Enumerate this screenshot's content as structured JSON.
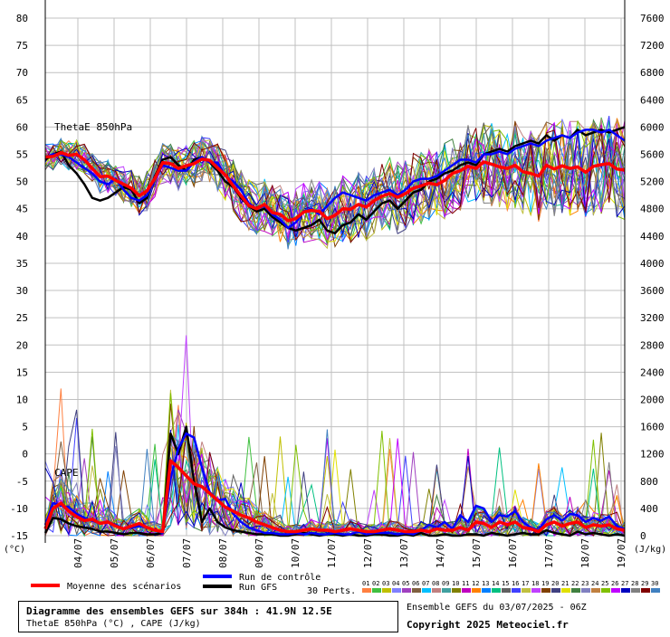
{
  "chart_data": {
    "type": "line",
    "left_axis": {
      "unit": "(°C)",
      "ticks": [
        80,
        75,
        70,
        65,
        60,
        55,
        50,
        45,
        40,
        35,
        30,
        25,
        20,
        15,
        10,
        5,
        0,
        -5,
        -10,
        -15
      ],
      "range": [
        -15,
        80
      ]
    },
    "right_axis": {
      "unit": "(J/kg)",
      "ticks": [
        7600,
        7200,
        6800,
        6400,
        6000,
        5600,
        5200,
        4800,
        4400,
        4000,
        3600,
        3200,
        2800,
        2400,
        2000,
        1600,
        1200,
        800,
        400,
        0
      ],
      "range": [
        0,
        7600
      ]
    },
    "x_ticks": [
      "04/07",
      "05/07",
      "06/07",
      "07/07",
      "08/07",
      "09/07",
      "10/07",
      "11/07",
      "12/07",
      "13/07",
      "14/07",
      "15/07",
      "16/07",
      "17/07",
      "18/07",
      "19/07"
    ],
    "panels": [
      {
        "label": "ThetaE 850hPa",
        "axis": "left"
      },
      {
        "label": "CAPE",
        "axis": "right"
      }
    ],
    "thetae_mean": [
      54.5,
      54.6,
      55.3,
      54.8,
      55.0,
      54.0,
      52.4,
      50.9,
      51.0,
      50.2,
      49.5,
      48.8,
      47.4,
      48.3,
      50.6,
      53.5,
      53.3,
      52.4,
      52.9,
      53.3,
      54.1,
      53.9,
      52.5,
      51.2,
      49.2,
      47.4,
      45.6,
      45.0,
      45.8,
      44.3,
      44.0,
      42.8,
      43.2,
      44.4,
      44.7,
      44.5,
      43.2,
      43.8,
      45.0,
      44.9,
      45.8,
      45.3,
      46.5,
      47.3,
      47.8,
      47.1,
      47.8,
      48.8,
      49.2,
      49.7,
      49.4,
      50.2,
      51.5,
      52.0,
      52.8,
      52.4,
      53.6,
      53.2,
      52.7,
      52.4,
      53.0,
      51.8,
      51.5,
      51.0,
      53.0,
      52.3,
      52.9,
      52.4,
      52.7,
      51.7,
      52.8,
      53.1,
      53.3,
      52.3,
      52.1
    ],
    "thetae_gfs": [
      54.0,
      55.0,
      55.5,
      53.0,
      51.5,
      49.5,
      47.0,
      46.5,
      47.0,
      48.0,
      49.0,
      48.5,
      46.0,
      47.0,
      51.0,
      54.0,
      54.5,
      53.0,
      52.0,
      54.0,
      54.5,
      53.5,
      52.0,
      50.0,
      49.0,
      47.0,
      45.5,
      44.5,
      45.0,
      43.5,
      42.5,
      41.5,
      41.0,
      41.5,
      42.0,
      43.0,
      41.0,
      40.5,
      42.0,
      42.5,
      44.0,
      43.0,
      44.5,
      46.0,
      46.5,
      45.0,
      46.5,
      48.0,
      48.5,
      50.0,
      50.5,
      51.5,
      52.0,
      53.0,
      53.5,
      53.0,
      55.0,
      55.5,
      56.0,
      55.5,
      56.5,
      57.0,
      57.5,
      57.0,
      58.5,
      57.5,
      58.5,
      58.0,
      59.5,
      58.5,
      59.0,
      59.5,
      59.0,
      59.5,
      60.0
    ],
    "thetae_control": [
      54.5,
      55.0,
      55.0,
      54.5,
      53.5,
      52.5,
      51.5,
      50.0,
      49.5,
      50.5,
      48.5,
      47.0,
      46.5,
      47.5,
      50.5,
      53.0,
      52.5,
      52.0,
      52.0,
      53.5,
      54.5,
      53.5,
      53.5,
      51.0,
      50.0,
      48.5,
      46.0,
      45.0,
      45.5,
      44.0,
      43.0,
      41.5,
      42.5,
      44.5,
      45.0,
      44.0,
      45.5,
      47.0,
      48.0,
      47.5,
      47.0,
      46.5,
      47.5,
      48.0,
      48.5,
      47.5,
      48.5,
      50.0,
      50.5,
      50.5,
      51.0,
      52.0,
      53.0,
      54.0,
      54.0,
      53.5,
      55.0,
      55.0,
      55.5,
      55.0,
      56.0,
      56.5,
      57.0,
      56.5,
      57.5,
      58.0,
      58.5,
      58.0,
      59.0,
      59.5,
      59.5,
      59.0,
      59.5,
      58.5,
      57.5
    ],
    "cape_mean": [
      100,
      400,
      480,
      360,
      280,
      220,
      240,
      180,
      200,
      140,
      100,
      140,
      180,
      120,
      80,
      60,
      1100,
      1000,
      880,
      760,
      720,
      620,
      520,
      420,
      360,
      300,
      260,
      200,
      160,
      120,
      80,
      60,
      60,
      80,
      100,
      80,
      80,
      60,
      80,
      100,
      80,
      60,
      60,
      80,
      100,
      80,
      60,
      60,
      80,
      60,
      100,
      80,
      80,
      120,
      80,
      200,
      180,
      120,
      200,
      160,
      200,
      120,
      100,
      60,
      160,
      200,
      140,
      180,
      200,
      120,
      160,
      140,
      160,
      100,
      80
    ],
    "cape_gfs": [
      40,
      260,
      240,
      180,
      140,
      120,
      100,
      60,
      60,
      40,
      20,
      40,
      40,
      20,
      20,
      40,
      1500,
      1200,
      1600,
      800,
      200,
      400,
      200,
      120,
      80,
      60,
      40,
      20,
      20,
      20,
      0,
      0,
      20,
      40,
      20,
      0,
      20,
      20,
      0,
      20,
      0,
      0,
      20,
      20,
      0,
      0,
      20,
      0,
      40,
      0,
      0,
      20,
      0,
      0,
      20,
      20,
      0,
      40,
      20,
      0,
      20,
      40,
      20,
      20,
      80,
      40,
      20,
      0,
      60,
      20,
      40,
      20,
      0,
      20,
      0
    ],
    "cape_control": [
      160,
      480,
      440,
      420,
      320,
      260,
      220,
      180,
      200,
      160,
      100,
      120,
      140,
      120,
      80,
      40,
      840,
      1280,
      1500,
      1440,
      1000,
      640,
      520,
      540,
      320,
      200,
      120,
      80,
      40,
      40,
      20,
      20,
      40,
      20,
      40,
      20,
      20,
      40,
      20,
      20,
      60,
      20,
      40,
      40,
      40,
      20,
      40,
      20,
      80,
      160,
      120,
      200,
      100,
      300,
      200,
      440,
      400,
      200,
      300,
      280,
      360,
      200,
      120,
      80,
      240,
      300,
      220,
      320,
      300,
      200,
      260,
      220,
      280,
      140,
      100
    ],
    "legend": {
      "mean": "Moyenne des scénarios",
      "control": "Run de contrôle",
      "gfs": "Run GFS",
      "perts": "30 Perts.",
      "pert_numbers": [
        "01",
        "02",
        "03",
        "04",
        "05",
        "06",
        "07",
        "08",
        "09",
        "10",
        "11",
        "12",
        "13",
        "14",
        "15",
        "16",
        "17",
        "18",
        "19",
        "20",
        "21",
        "22",
        "23",
        "24",
        "25",
        "26",
        "27",
        "28",
        "29",
        "30"
      ]
    },
    "colors": {
      "mean": "#ff0000",
      "control": "#0000ff",
      "gfs": "#000000",
      "grid": "#c0c0c0",
      "perts": [
        "#ff8040",
        "#40c040",
        "#c0c000",
        "#8080ff",
        "#a040c0",
        "#806040",
        "#00c0ff",
        "#c08080",
        "#40a0a0",
        "#808000",
        "#c000c0",
        "#ff8000",
        "#0080ff",
        "#00c080",
        "#606060",
        "#4040ff",
        "#c0c040",
        "#c040ff",
        "#804000",
        "#404080",
        "#e0e000",
        "#408040",
        "#8080c0",
        "#c08040",
        "#80c000",
        "#c000ff",
        "#0000c0",
        "#808080",
        "#800000",
        "#4080c0"
      ]
    }
  },
  "footer": {
    "title": "Diagramme des ensembles GEFS sur 384h : 41.9N 12.5E",
    "subtitle": "ThetaE 850hPa (°C) , CAPE (J/kg)",
    "run": "Ensemble GEFS du 03/07/2025 - 06Z",
    "copyright": "Copyright 2025 Meteociel.fr"
  }
}
